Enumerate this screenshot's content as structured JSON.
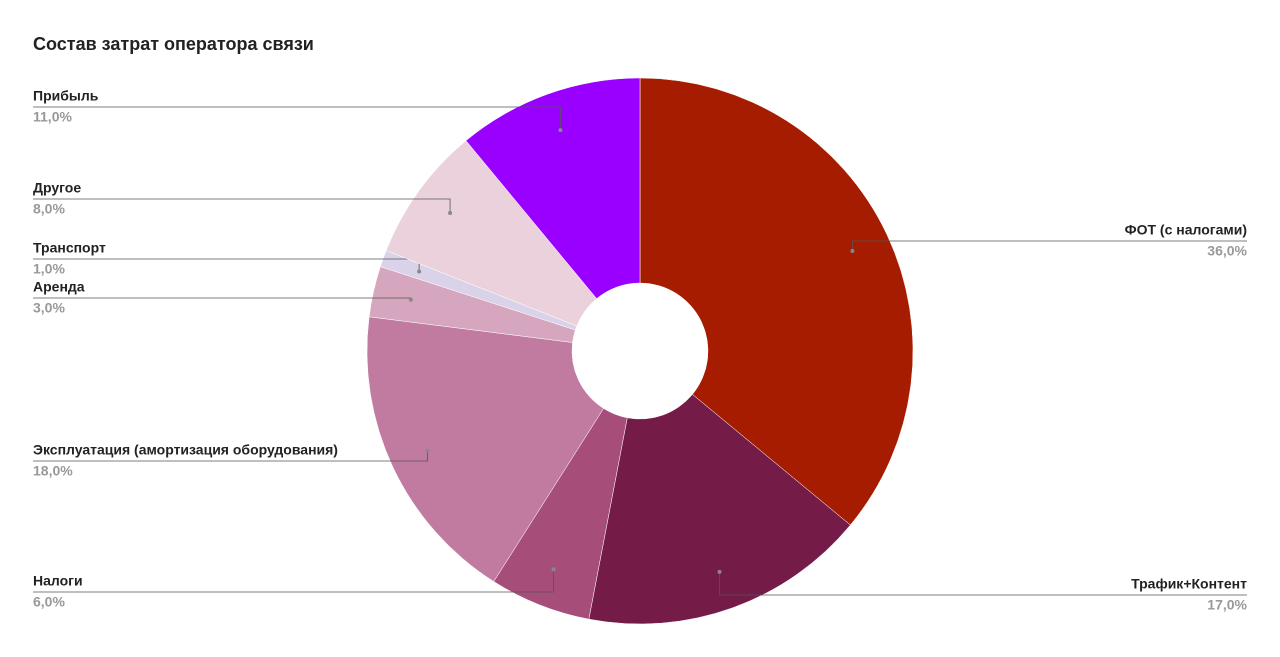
{
  "chart_data": {
    "type": "donut",
    "title": "Состав затрат оператора связи",
    "categories": [
      "ФОТ (с налогами)",
      "Трафик+Контент",
      "Налоги",
      "Эксплуатация (амортизация оборудования)",
      "Аренда",
      "Транспорт",
      "Другое",
      "Прибыль"
    ],
    "values": [
      36,
      17,
      6,
      18,
      3,
      1,
      8,
      11
    ],
    "value_labels": [
      "36,0%",
      "17,0%",
      "6,0%",
      "18,0%",
      "3,0%",
      "1,0%",
      "8,0%",
      "11,0%"
    ],
    "colors": [
      "#a61c00",
      "#741b47",
      "#a64d79",
      "#c27ba0",
      "#d5a6bd",
      "#d9d2e9",
      "#ead1dc",
      "#9900ff"
    ]
  }
}
